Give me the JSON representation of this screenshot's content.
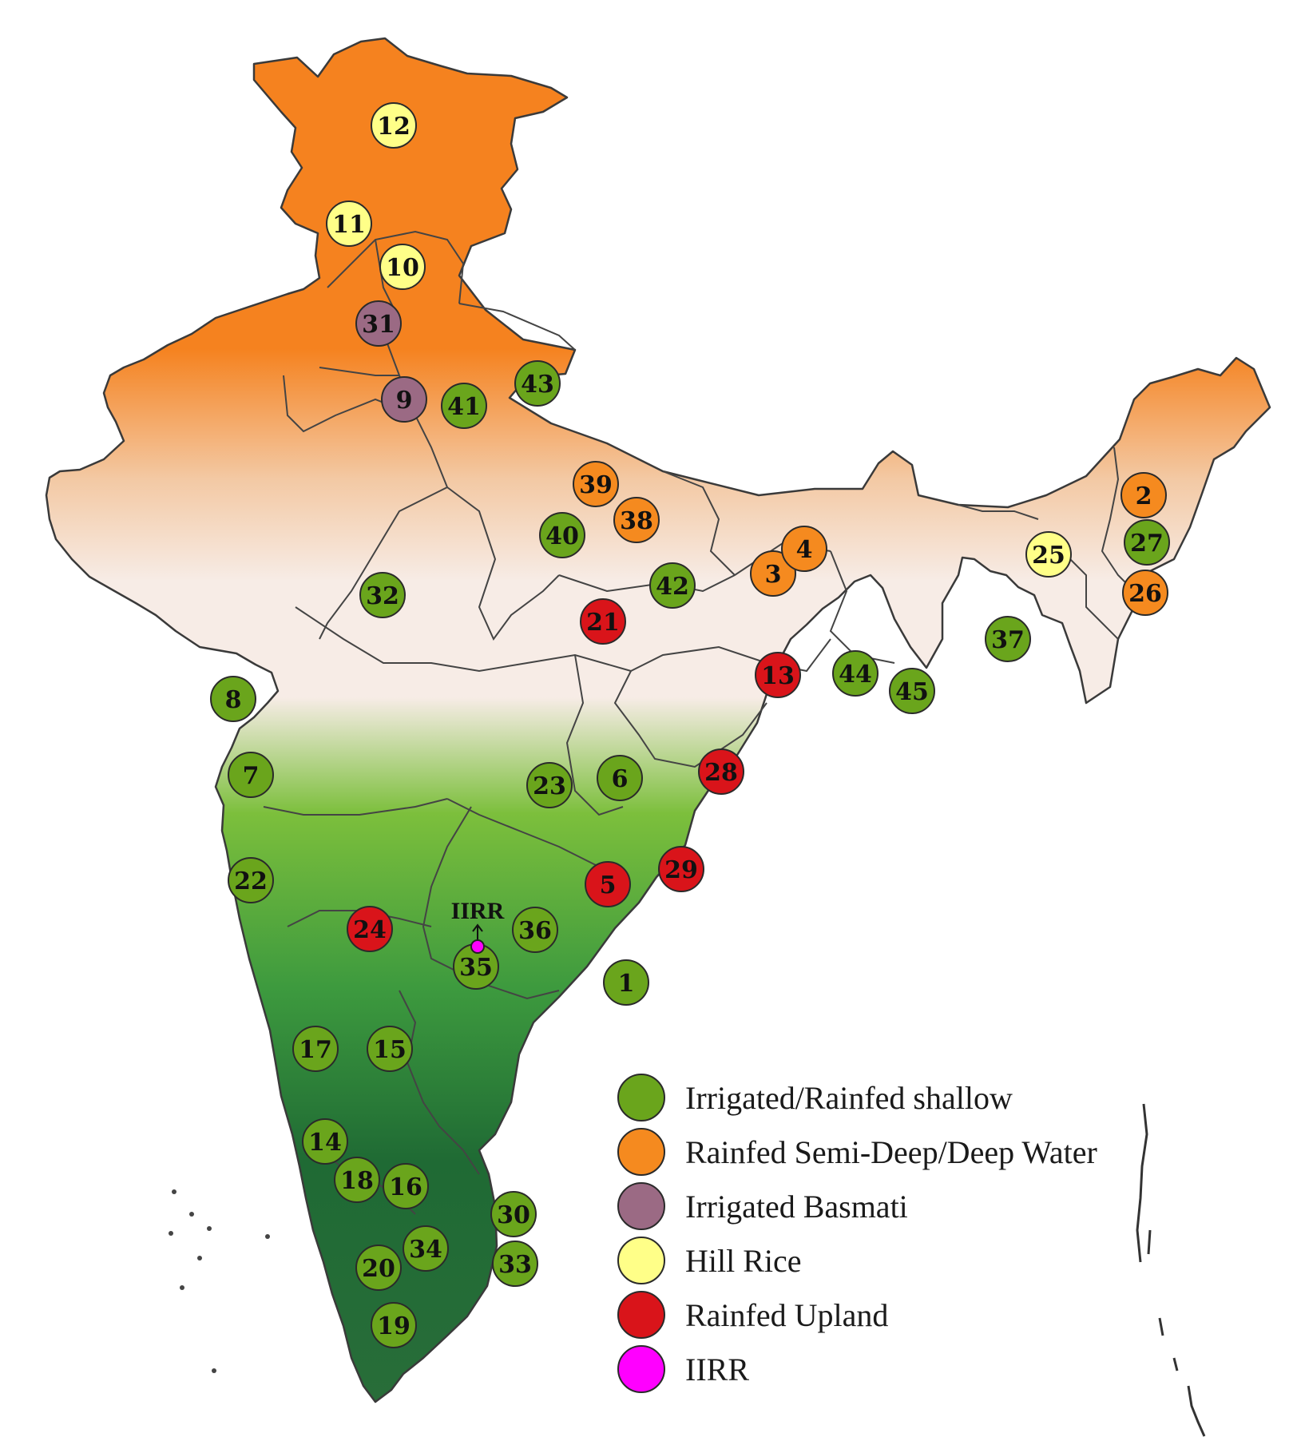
{
  "colors": {
    "irrigated_shallow": "#6aa51c",
    "semi_deep": "#f58a1f",
    "basmati": "#9b6a84",
    "hill": "#ffff88",
    "upland": "#d9141a",
    "iirr": "#ff00ff",
    "map_top": "#f5821f",
    "map_mid": "#f7ece6",
    "map_bottom": "#1f6a34"
  },
  "sites": [
    {
      "num": "1",
      "type": "irrigated_shallow"
    },
    {
      "num": "2",
      "type": "semi_deep"
    },
    {
      "num": "3",
      "type": "semi_deep"
    },
    {
      "num": "4",
      "type": "semi_deep"
    },
    {
      "num": "5",
      "type": "upland"
    },
    {
      "num": "6",
      "type": "irrigated_shallow"
    },
    {
      "num": "7",
      "type": "irrigated_shallow"
    },
    {
      "num": "8",
      "type": "irrigated_shallow"
    },
    {
      "num": "9",
      "type": "basmati"
    },
    {
      "num": "10",
      "type": "hill"
    },
    {
      "num": "11",
      "type": "hill"
    },
    {
      "num": "12",
      "type": "hill"
    },
    {
      "num": "13",
      "type": "upland"
    },
    {
      "num": "14",
      "type": "irrigated_shallow"
    },
    {
      "num": "15",
      "type": "irrigated_shallow"
    },
    {
      "num": "16",
      "type": "irrigated_shallow"
    },
    {
      "num": "17",
      "type": "irrigated_shallow"
    },
    {
      "num": "18",
      "type": "irrigated_shallow"
    },
    {
      "num": "19",
      "type": "irrigated_shallow"
    },
    {
      "num": "20",
      "type": "irrigated_shallow"
    },
    {
      "num": "21",
      "type": "upland"
    },
    {
      "num": "22",
      "type": "irrigated_shallow"
    },
    {
      "num": "23",
      "type": "irrigated_shallow"
    },
    {
      "num": "24",
      "type": "upland"
    },
    {
      "num": "25",
      "type": "hill"
    },
    {
      "num": "26",
      "type": "semi_deep"
    },
    {
      "num": "27",
      "type": "irrigated_shallow"
    },
    {
      "num": "28",
      "type": "upland"
    },
    {
      "num": "29",
      "type": "upland"
    },
    {
      "num": "30",
      "type": "irrigated_shallow"
    },
    {
      "num": "31",
      "type": "basmati"
    },
    {
      "num": "32",
      "type": "irrigated_shallow"
    },
    {
      "num": "33",
      "type": "irrigated_shallow"
    },
    {
      "num": "34",
      "type": "irrigated_shallow"
    },
    {
      "num": "35",
      "type": "irrigated_shallow"
    },
    {
      "num": "36",
      "type": "irrigated_shallow"
    },
    {
      "num": "37",
      "type": "irrigated_shallow"
    },
    {
      "num": "38",
      "type": "semi_deep"
    },
    {
      "num": "39",
      "type": "semi_deep"
    },
    {
      "num": "40",
      "type": "irrigated_shallow"
    },
    {
      "num": "41",
      "type": "irrigated_shallow"
    },
    {
      "num": "42",
      "type": "irrigated_shallow"
    },
    {
      "num": "43",
      "type": "irrigated_shallow"
    },
    {
      "num": "44",
      "type": "irrigated_shallow"
    },
    {
      "num": "45",
      "type": "irrigated_shallow"
    }
  ],
  "iirr_marker_label": "IIRR",
  "legend": [
    {
      "label": "Irrigated/Rainfed shallow",
      "type": "irrigated_shallow"
    },
    {
      "label": "Rainfed Semi-Deep/Deep Water",
      "type": "semi_deep"
    },
    {
      "label": "Irrigated Basmati",
      "type": "basmati"
    },
    {
      "label": "Hill Rice",
      "type": "hill"
    },
    {
      "label": "Rainfed Upland",
      "type": "upland"
    },
    {
      "label": "IIRR",
      "type": "iirr"
    }
  ]
}
